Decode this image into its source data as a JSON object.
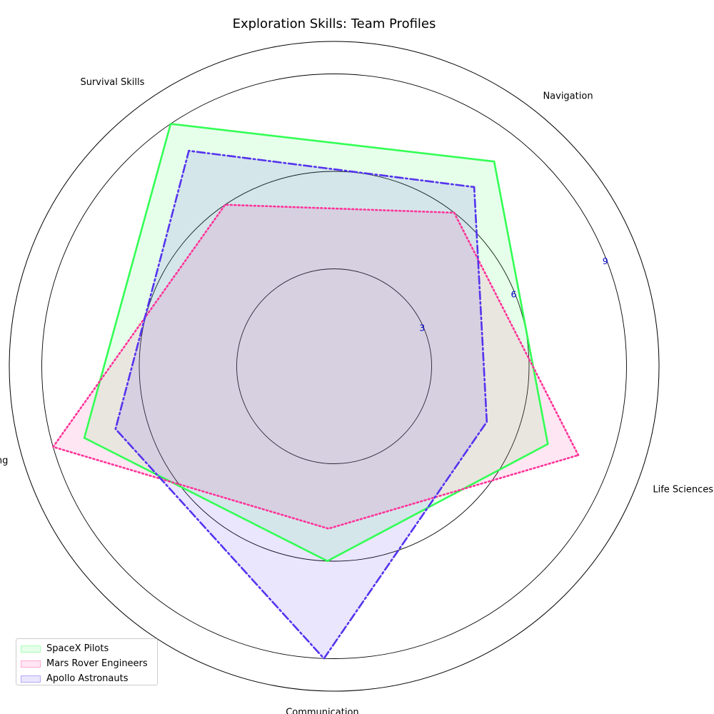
{
  "chart_data": {
    "type": "radar",
    "title": "Exploration Skills: Team Profiles",
    "axes": [
      "Life Sciences",
      "Navigation",
      "Survival Skills",
      "Engineering",
      "Communication"
    ],
    "rlim": [
      0,
      10
    ],
    "r_ticks": [
      3,
      6,
      9
    ],
    "r_tick_labels": [
      "3",
      "6",
      "9"
    ],
    "grid": true,
    "legend_position": "lower-left",
    "series": [
      {
        "name": "SpaceX Pilots",
        "values": [
          7,
          8,
          9,
          8,
          6
        ],
        "color": "#33ff55",
        "linestyle": "solid"
      },
      {
        "name": "Mars Rover Engineers",
        "values": [
          8,
          6,
          6,
          9,
          5
        ],
        "color": "#ff3399",
        "linestyle": "dotted"
      },
      {
        "name": "Apollo Astronauts",
        "values": [
          5,
          7,
          8,
          7,
          9
        ],
        "color": "#5533ee",
        "linestyle": "dashdot"
      }
    ]
  }
}
